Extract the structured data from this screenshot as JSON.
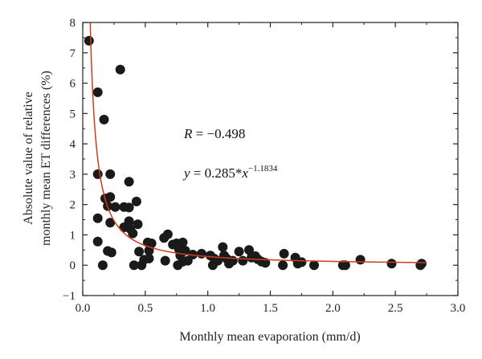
{
  "chart_data": {
    "type": "scatter",
    "xlabel": "Monthly mean evaporation (mm/d)",
    "ylabel_lines": [
      "Absolute value of relative",
      "monthly mean ET differences (%)"
    ],
    "xlim": [
      0,
      3.0
    ],
    "ylim": [
      -1,
      8
    ],
    "x_ticks": [
      "0.0",
      "0.5",
      "1.0",
      "1.5",
      "2.0",
      "2.5",
      "3.0"
    ],
    "y_ticks": [
      "−1",
      "0",
      "1",
      "2",
      "3",
      "4",
      "5",
      "6",
      "7",
      "8"
    ],
    "grid": false,
    "annotations": {
      "r_symbol": "R",
      "r_value": " = −0.498",
      "eq_y": "y",
      "eq_body": " = 0.285*",
      "eq_x": "x",
      "eq_exp": "−1.1834"
    },
    "fit": {
      "a": 0.285,
      "b": -1.1834,
      "color": "#d03a1e"
    },
    "point_color": "#1a1a1a",
    "points": [
      [
        0.05,
        7.4
      ],
      [
        0.12,
        5.7
      ],
      [
        0.17,
        4.8
      ],
      [
        0.3,
        6.45
      ],
      [
        0.12,
        3.0
      ],
      [
        0.22,
        3.0
      ],
      [
        0.37,
        2.75
      ],
      [
        0.18,
        2.2
      ],
      [
        0.22,
        2.25
      ],
      [
        0.2,
        1.95
      ],
      [
        0.26,
        1.92
      ],
      [
        0.33,
        1.92
      ],
      [
        0.37,
        1.9
      ],
      [
        0.43,
        2.1
      ],
      [
        0.12,
        1.55
      ],
      [
        0.22,
        1.4
      ],
      [
        0.37,
        1.45
      ],
      [
        0.33,
        1.25
      ],
      [
        0.38,
        1.2
      ],
      [
        0.4,
        1.05
      ],
      [
        0.44,
        1.35
      ],
      [
        0.12,
        0.78
      ],
      [
        0.2,
        0.47
      ],
      [
        0.23,
        0.42
      ],
      [
        0.16,
        0.0
      ],
      [
        0.41,
        0.0
      ],
      [
        0.45,
        0.45
      ],
      [
        0.47,
        0.0
      ],
      [
        0.49,
        0.18
      ],
      [
        0.52,
        0.75
      ],
      [
        0.53,
        0.48
      ],
      [
        0.55,
        0.72
      ],
      [
        0.53,
        0.22
      ],
      [
        0.65,
        0.9
      ],
      [
        0.68,
        1.02
      ],
      [
        0.66,
        0.15
      ],
      [
        0.72,
        0.68
      ],
      [
        0.75,
        0.72
      ],
      [
        0.77,
        0.52
      ],
      [
        0.78,
        0.32
      ],
      [
        0.8,
        0.75
      ],
      [
        0.76,
        0.0
      ],
      [
        0.8,
        0.12
      ],
      [
        0.82,
        0.48
      ],
      [
        0.84,
        0.15
      ],
      [
        0.88,
        0.35
      ],
      [
        0.95,
        0.38
      ],
      [
        1.02,
        0.32
      ],
      [
        1.04,
        0.0
      ],
      [
        1.05,
        0.22
      ],
      [
        1.08,
        0.15
      ],
      [
        1.12,
        0.6
      ],
      [
        1.13,
        0.32
      ],
      [
        1.15,
        0.22
      ],
      [
        1.17,
        0.05
      ],
      [
        1.2,
        0.15
      ],
      [
        1.25,
        0.45
      ],
      [
        1.28,
        0.15
      ],
      [
        1.33,
        0.5
      ],
      [
        1.35,
        0.25
      ],
      [
        1.38,
        0.3
      ],
      [
        1.4,
        0.2
      ],
      [
        1.43,
        0.12
      ],
      [
        1.46,
        0.08
      ],
      [
        1.6,
        0.0
      ],
      [
        1.61,
        0.38
      ],
      [
        1.7,
        0.25
      ],
      [
        1.72,
        0.05
      ],
      [
        1.75,
        0.1
      ],
      [
        1.85,
        0.0
      ],
      [
        2.08,
        0.0
      ],
      [
        2.1,
        0.0
      ],
      [
        2.22,
        0.18
      ],
      [
        2.47,
        0.05
      ],
      [
        2.7,
        0.0
      ],
      [
        2.71,
        0.05
      ]
    ]
  }
}
